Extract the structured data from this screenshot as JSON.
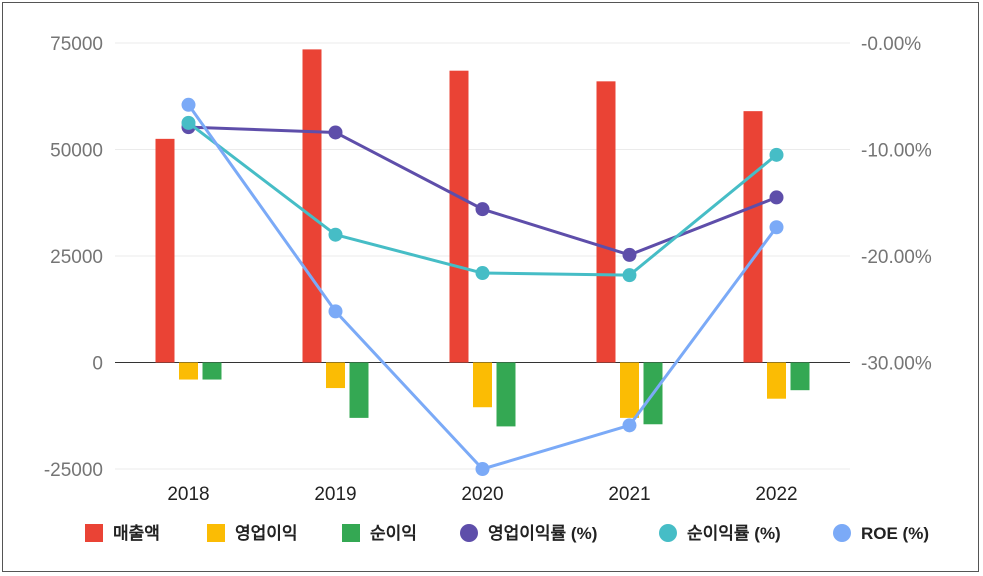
{
  "chart_data": {
    "type": "bar",
    "categories": [
      "2018",
      "2019",
      "2020",
      "2021",
      "2022"
    ],
    "left_axis": {
      "ticks": [
        "75000",
        "50000",
        "25000",
        "0",
        "-25000"
      ],
      "ylim": [
        -25000,
        75000
      ]
    },
    "right_axis": {
      "ticks": [
        "-0.00%",
        "-10.00%",
        "-20.00%",
        "-30.00%"
      ],
      "ylim": [
        -40,
        0
      ]
    },
    "grid": true,
    "legend_position": "bottom",
    "series": [
      {
        "name": "매출액",
        "kind": "bar",
        "axis": "left",
        "color": "#ea4335",
        "values": [
          52500,
          73500,
          68500,
          66000,
          59000
        ]
      },
      {
        "name": "영업이익",
        "kind": "bar",
        "axis": "left",
        "color": "#fbbc04",
        "values": [
          -4000,
          -6000,
          -10500,
          -13000,
          -8500
        ]
      },
      {
        "name": "순이익",
        "kind": "bar",
        "axis": "left",
        "color": "#34a853",
        "values": [
          -4000,
          -13000,
          -15000,
          -14500,
          -6500
        ]
      },
      {
        "name": "영업이익률 (%)",
        "kind": "line",
        "axis": "right",
        "color": "#5e4eaa",
        "values": [
          -7.9,
          -8.4,
          -15.6,
          -19.9,
          -14.5
        ]
      },
      {
        "name": "순이익률 (%)",
        "kind": "line",
        "axis": "right",
        "color": "#46bdc6",
        "values": [
          -7.5,
          -18.0,
          -21.6,
          -21.8,
          -10.5
        ]
      },
      {
        "name": "ROE (%)",
        "kind": "line",
        "axis": "right",
        "color": "#7baaf7",
        "values": [
          -5.8,
          -25.2,
          -40.0,
          -35.9,
          -17.3
        ]
      }
    ]
  }
}
